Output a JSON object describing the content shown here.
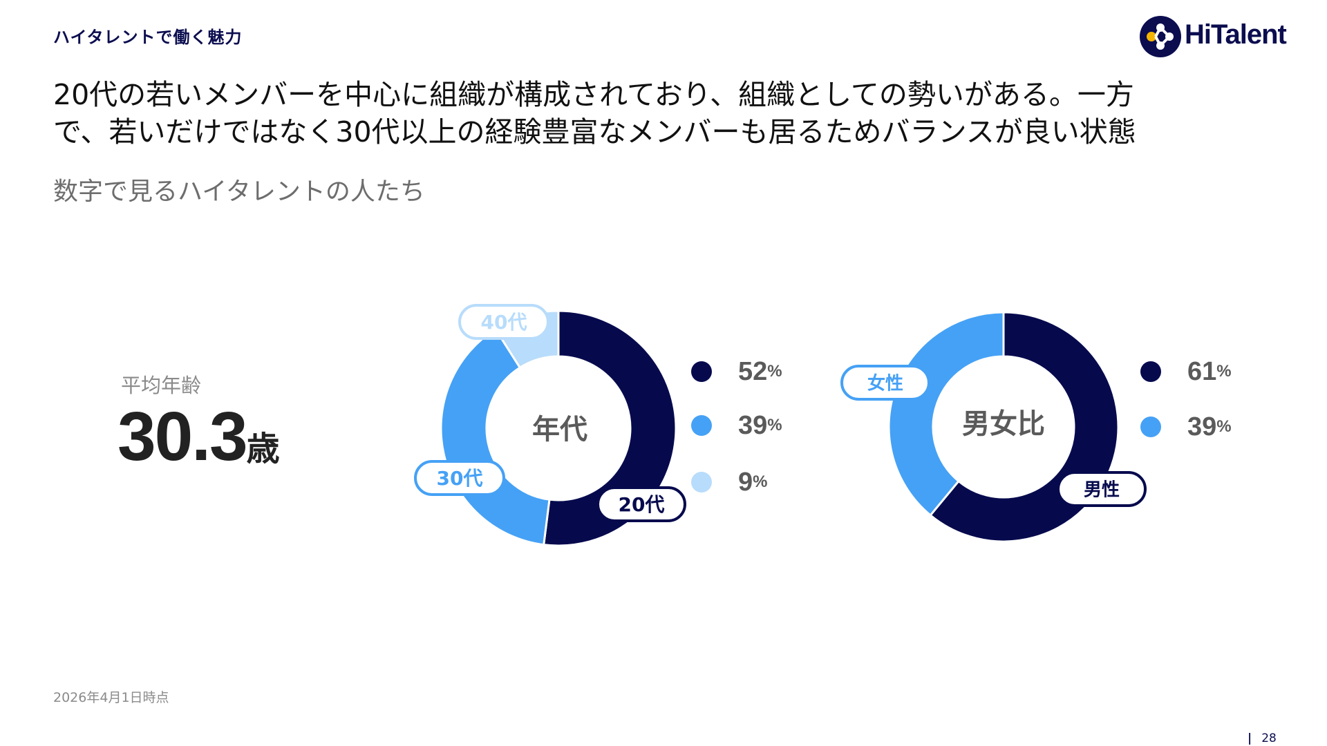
{
  "header": {
    "section_label": "ハイタレントで働く魅力",
    "logo_text": "HiTalent"
  },
  "headline": {
    "line1": "20代の若いメンバーを中心に組織が構成されており、組織としての勢いがある。一方",
    "line2": "で、若いだけではなく30代以上の経験豊富なメンバーも居るためバランスが良い状態"
  },
  "subtitle": "数字で見るハイタレントの人たち",
  "average_age": {
    "label": "平均年齢",
    "value": "30.3",
    "unit": "歳"
  },
  "colors": {
    "navy": "#060a4d",
    "blue": "#45a1f5",
    "light_blue": "#b8dcfb"
  },
  "chart_data": [
    {
      "type": "pie",
      "title": "",
      "center_label": "年代",
      "categories": [
        "20代",
        "30代",
        "40代"
      ],
      "values": [
        52,
        39,
        9
      ],
      "unit": "%",
      "colors": [
        "#060a4d",
        "#45a1f5",
        "#b8dcfb"
      ]
    },
    {
      "type": "pie",
      "title": "",
      "center_label": "男女比",
      "categories": [
        "男性",
        "女性"
      ],
      "values": [
        61,
        39
      ],
      "unit": "%",
      "colors": [
        "#060a4d",
        "#45a1f5"
      ]
    }
  ],
  "footer": {
    "as_of": "2026年4月1日時点",
    "page_separator": "|",
    "page_number": "28"
  }
}
